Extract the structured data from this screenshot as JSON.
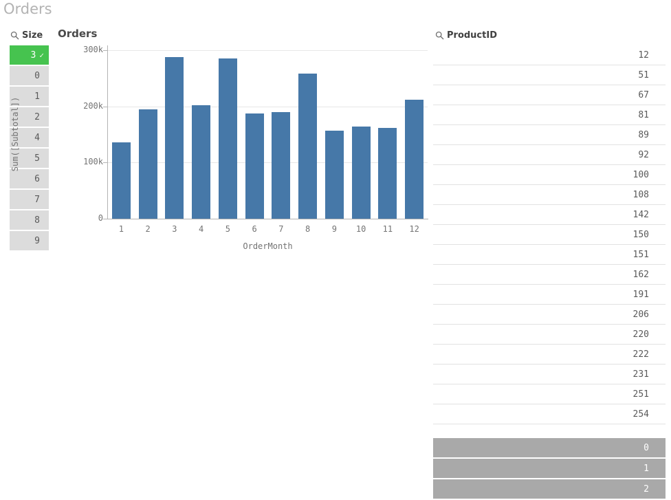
{
  "page": {
    "title": "Orders"
  },
  "size_filter": {
    "header": "Size",
    "items": [
      {
        "value": "3",
        "state": "selected"
      },
      {
        "value": "0",
        "state": "alternative"
      },
      {
        "value": "1",
        "state": "alternative"
      },
      {
        "value": "2",
        "state": "alternative"
      },
      {
        "value": "4",
        "state": "alternative"
      },
      {
        "value": "5",
        "state": "alternative"
      },
      {
        "value": "6",
        "state": "alternative"
      },
      {
        "value": "7",
        "state": "alternative"
      },
      {
        "value": "8",
        "state": "alternative"
      },
      {
        "value": "9",
        "state": "alternative"
      }
    ]
  },
  "chart": {
    "title": "Orders",
    "y_axis_title": "Sum([Subtotal])",
    "x_axis_title": "OrderMonth"
  },
  "chart_data": {
    "type": "bar",
    "title": "Orders",
    "xlabel": "OrderMonth",
    "ylabel": "Sum([Subtotal])",
    "categories": [
      "1",
      "2",
      "3",
      "4",
      "5",
      "6",
      "7",
      "8",
      "9",
      "10",
      "11",
      "12"
    ],
    "values": [
      136000,
      195000,
      288000,
      202000,
      285000,
      187000,
      190000,
      258000,
      157000,
      164000,
      162000,
      212000
    ],
    "ylim": [
      0,
      300000
    ],
    "yticks": [
      0,
      100000,
      200000,
      300000
    ],
    "ytick_labels": [
      "0",
      "100k",
      "200k",
      "300k"
    ],
    "grid": true,
    "legend": "none",
    "bar_color": "#4678a8"
  },
  "product_filter": {
    "header": "ProductID",
    "included": [
      "12",
      "51",
      "67",
      "81",
      "89",
      "92",
      "100",
      "108",
      "142",
      "150",
      "151",
      "162",
      "191",
      "206",
      "220",
      "222",
      "231",
      "251",
      "254"
    ],
    "excluded": [
      "0",
      "1",
      "2"
    ]
  },
  "colors": {
    "selected_green": "#46c34f",
    "alternative_gray": "#dcdcdc",
    "excluded_gray": "#a9a9a9",
    "bar_blue": "#4678a8",
    "page_title_gray": "#b3b3b3"
  }
}
